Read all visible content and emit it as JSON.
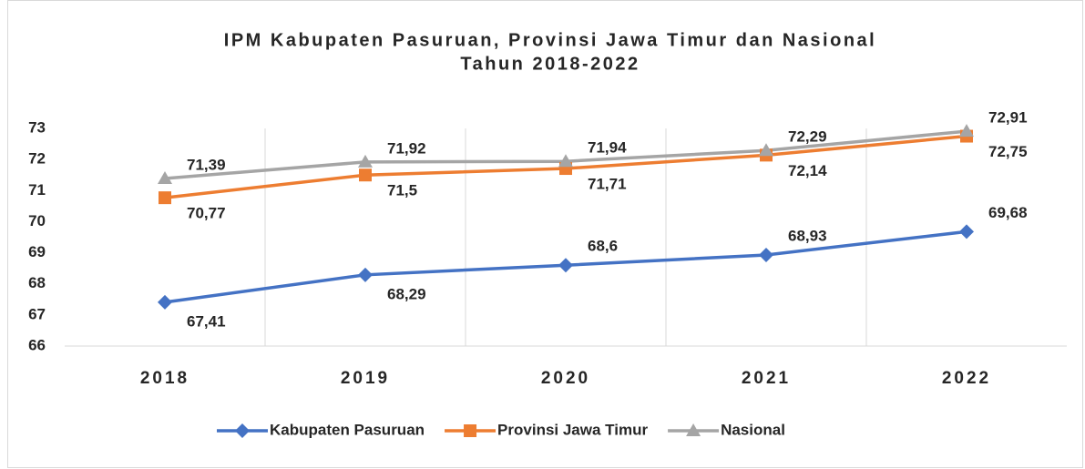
{
  "chart_data": {
    "type": "line",
    "title": "IPM Kabupaten Pasuruan, Provinsi Jawa Timur dan Nasional",
    "subtitle": "Tahun 2018-2022",
    "categories": [
      "2018",
      "2019",
      "2020",
      "2021",
      "2022"
    ],
    "series": [
      {
        "name": "Kabupaten Pasuruan",
        "color": "#4472c4",
        "marker": "diamond",
        "values": [
          67.41,
          68.29,
          68.6,
          68.93,
          69.68
        ],
        "value_labels": [
          "67,41",
          "68,29",
          "68,6",
          "68,93",
          "69,68"
        ]
      },
      {
        "name": "Provinsi Jawa Timur",
        "color": "#ed7d31",
        "marker": "square",
        "values": [
          70.77,
          71.5,
          71.71,
          72.14,
          72.75
        ],
        "value_labels": [
          "70,77",
          "71,5",
          "71,71",
          "72,14",
          "72,75"
        ]
      },
      {
        "name": "Nasional",
        "color": "#a5a5a5",
        "marker": "triangle",
        "values": [
          71.39,
          71.92,
          71.94,
          72.29,
          72.91
        ],
        "value_labels": [
          "71,39",
          "71,92",
          "71,94",
          "72,29",
          "72,91"
        ]
      }
    ],
    "ylim": [
      66,
      73
    ],
    "yticks": [
      66,
      67,
      68,
      69,
      70,
      71,
      72,
      73
    ],
    "grid": "vertical",
    "legend": "bottom"
  }
}
